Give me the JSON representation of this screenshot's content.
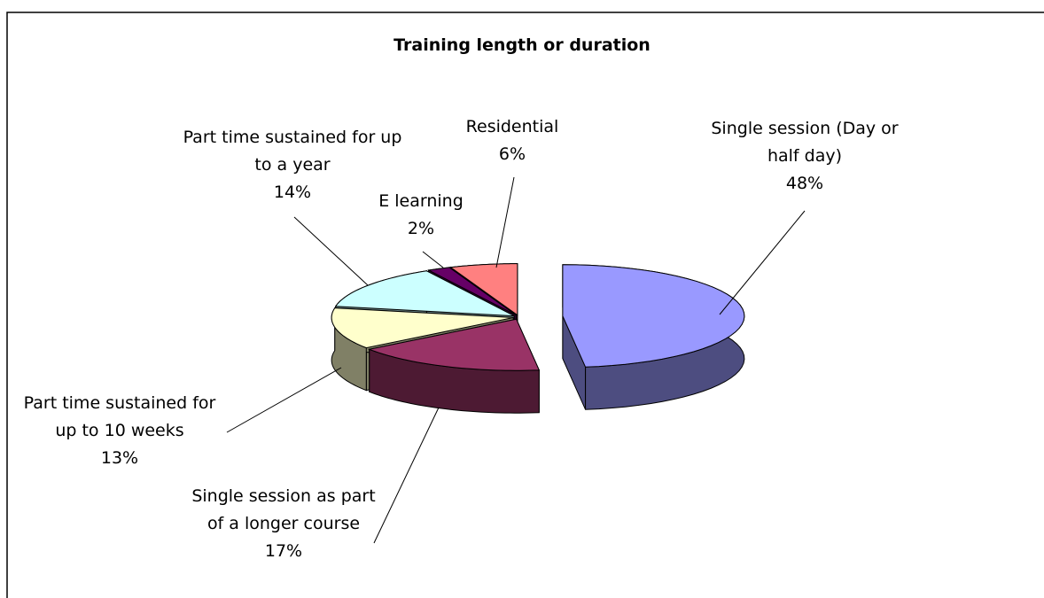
{
  "chart_data": {
    "type": "pie3d",
    "title": "Training length or duration",
    "categories": [
      "Single session (Day or half day)",
      "Single session as part of a longer course",
      "Part time sustained for up to 10 weeks",
      "Part time sustained for up to a year",
      "E learning",
      "Residential"
    ],
    "values": [
      48,
      17,
      13,
      14,
      2,
      6
    ],
    "value_labels": [
      "48%",
      "17%",
      "13%",
      "14%",
      "2%",
      "6%"
    ],
    "colors": [
      "#9999ff",
      "#993366",
      "#ffffcc",
      "#ccffff",
      "#660066",
      "#ff8080"
    ]
  }
}
